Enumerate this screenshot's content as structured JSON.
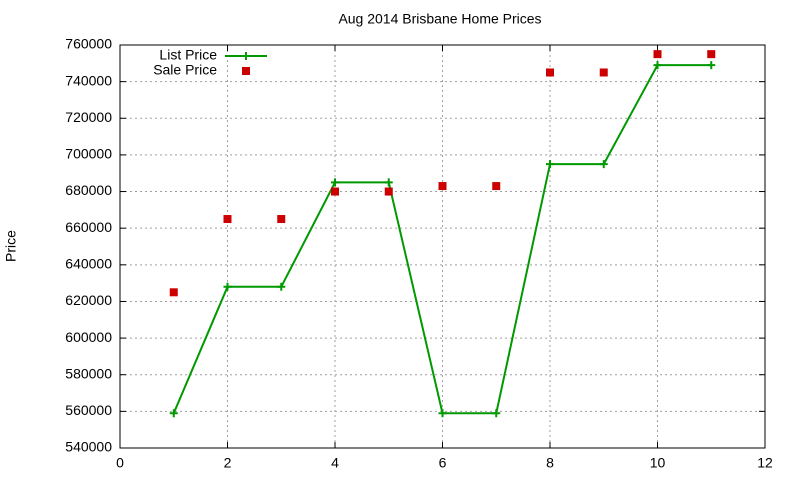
{
  "chart_data": {
    "type": "line",
    "title": "Aug 2014 Brisbane Home Prices",
    "y_label": "Price",
    "x": [
      1,
      2,
      3,
      4,
      5,
      6,
      7,
      8,
      9,
      10,
      11
    ],
    "series": [
      {
        "name": "List Price",
        "color": "#009900",
        "style": "linespoints",
        "values": [
          559000,
          628000,
          628000,
          685000,
          685000,
          559000,
          559000,
          695000,
          695000,
          749000,
          749000
        ]
      },
      {
        "name": "Sale Price",
        "color": "#cc0000",
        "style": "points",
        "values": [
          625000,
          665000,
          665000,
          680000,
          680000,
          683000,
          683000,
          745000,
          745000,
          755000,
          755000
        ]
      }
    ],
    "xlim": [
      0,
      12
    ],
    "xticks": [
      0,
      2,
      4,
      6,
      8,
      10,
      12
    ],
    "ylim": [
      540000,
      760000
    ],
    "yticks": [
      540000,
      560000,
      580000,
      600000,
      620000,
      640000,
      660000,
      680000,
      700000,
      720000,
      740000,
      760000
    ],
    "grid": true,
    "legend": "top-left"
  }
}
